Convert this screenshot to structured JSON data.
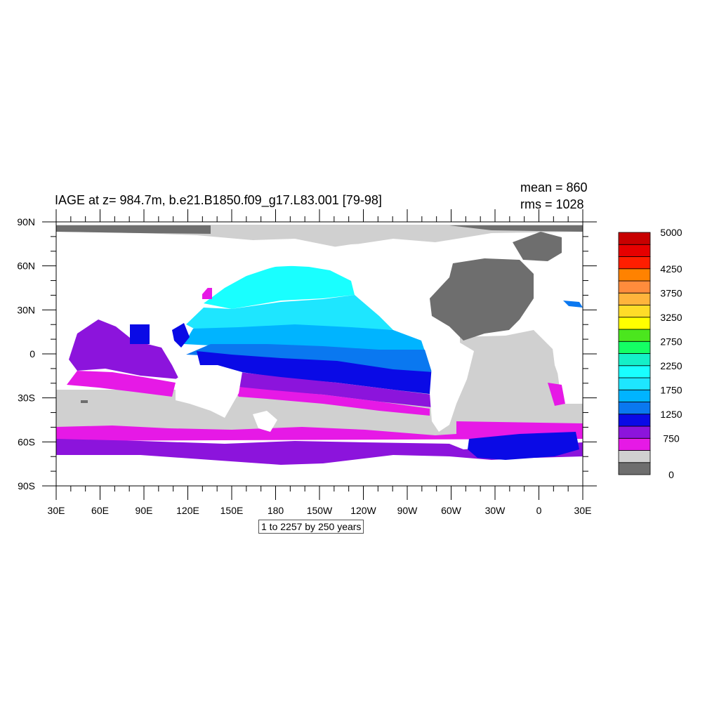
{
  "title": "IAGE at z= 984.7m, b.e21.B1850.f09_g17.L83.001 [79-98]",
  "stats": {
    "mean": "mean = 860",
    "rms": "rms = 1028"
  },
  "axes": {
    "lat_ticks": [
      "90N",
      "60N",
      "30N",
      "0",
      "30S",
      "60S",
      "90S"
    ],
    "lon_ticks": [
      "30E",
      "60E",
      "90E",
      "120E",
      "150E",
      "180",
      "150W",
      "120W",
      "90W",
      "60W",
      "30W",
      "0",
      "30E"
    ]
  },
  "contour_note": "1 to 2257 by 250 years",
  "colorbar": {
    "colors": [
      "#6e6e6e",
      "#d0d0d0",
      "#e619e6",
      "#8c14dc",
      "#0a0ae6",
      "#0a78f0",
      "#00b4ff",
      "#1ee6ff",
      "#19ffff",
      "#14f0c8",
      "#14ff64",
      "#4be61e",
      "#ffff00",
      "#ffdc28",
      "#ffb43c",
      "#ff8c3c",
      "#ff8200",
      "#ff1e00",
      "#e60000",
      "#c80000"
    ],
    "labels": [
      "0",
      "750",
      "1250",
      "1750",
      "2250",
      "2750",
      "3250",
      "3750",
      "4250",
      "5000"
    ],
    "label_levels": [
      0,
      3,
      5,
      7,
      9,
      11,
      13,
      15,
      17,
      20
    ]
  },
  "palette": {
    "land": "#ffffff",
    "fill_lightgray": "#d0d0d0",
    "fill_darkgray": "#6e6e6e"
  }
}
